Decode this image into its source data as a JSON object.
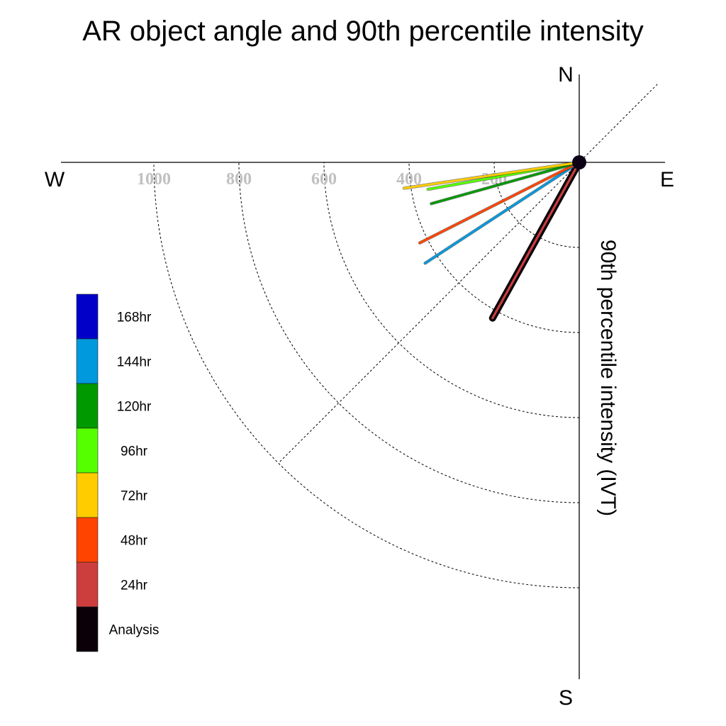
{
  "chart_data": {
    "type": "polar-vector",
    "title": "AR object angle and 90th percentile intensity",
    "ylabel": "90th percentile intensity (IVT)",
    "compass": {
      "north": "N",
      "south": "S",
      "east": "E",
      "west": "W"
    },
    "radial_ticks": [
      "200",
      "400",
      "600",
      "800",
      "1000"
    ],
    "radial_tick_values": [
      200,
      400,
      600,
      800,
      1000
    ],
    "range": [
      0,
      1200
    ],
    "grid": true,
    "legend_position": "left",
    "series": [
      {
        "name": "168hr",
        "color": "#0000c8",
        "angle_deg": null,
        "intensity": null
      },
      {
        "name": "144hr",
        "color": "#0099dd",
        "angle_deg": 236.8,
        "intensity": 433
      },
      {
        "name": "120hr",
        "color": "#009900",
        "angle_deg": 254.4,
        "intensity": 361
      },
      {
        "name": "96hr",
        "color": "#55ff00",
        "angle_deg": 259.9,
        "intensity": 361
      },
      {
        "name": "72hr",
        "color": "#ffcc00",
        "angle_deg": 261.6,
        "intensity": 416
      },
      {
        "name": "48hr",
        "color": "#ff4400",
        "angle_deg": 243.2,
        "intensity": 420
      },
      {
        "name": "24hr",
        "color": "#cc3d3d",
        "angle_deg": 209.1,
        "intensity": 419
      },
      {
        "name": "Analysis",
        "color": "#0b0008",
        "angle_deg": 209.1,
        "intensity": 419
      }
    ]
  }
}
